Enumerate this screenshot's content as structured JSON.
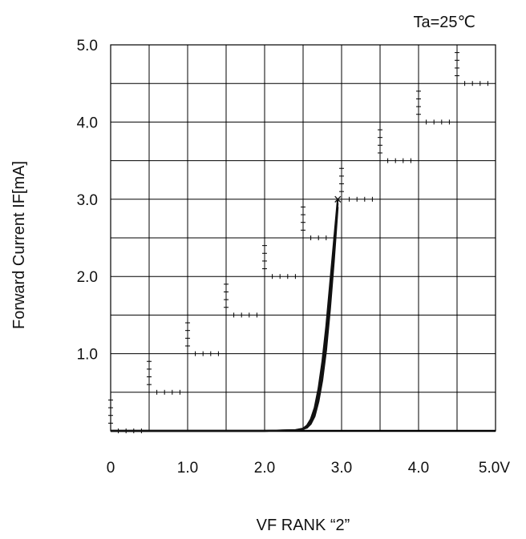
{
  "chart_data": {
    "type": "line",
    "annotation": "Ta=25℃",
    "xlabel": "VF RANK “2”",
    "ylabel": "Forward Current IF[mA]",
    "xlim": [
      0,
      5
    ],
    "ylim": [
      0,
      5
    ],
    "grid": true,
    "x_tick_labels": [
      {
        "value": 0,
        "label": "0"
      },
      {
        "value": 1,
        "label": "1.0"
      },
      {
        "value": 2,
        "label": "2.0"
      },
      {
        "value": 3,
        "label": "3.0"
      },
      {
        "value": 4,
        "label": "4.0"
      },
      {
        "value": 5,
        "label": "5.0V"
      }
    ],
    "y_tick_labels": [
      {
        "value": 1,
        "label": "1.0"
      },
      {
        "value": 2,
        "label": "2.0"
      },
      {
        "value": 3,
        "label": "3.0"
      },
      {
        "value": 4,
        "label": "4.0"
      },
      {
        "value": 5,
        "label": "5.0"
      }
    ],
    "series": [
      {
        "x": [
          0,
          2.0,
          2.4,
          2.5,
          2.55,
          2.6,
          2.65,
          2.7,
          2.75,
          2.8,
          2.85,
          2.9,
          2.95
        ],
        "y": [
          0,
          0,
          0.01,
          0.03,
          0.07,
          0.15,
          0.3,
          0.55,
          0.9,
          1.35,
          1.9,
          2.45,
          3.0
        ]
      },
      {
        "x": [
          0,
          2.0,
          2.4,
          2.5,
          2.55,
          2.6,
          2.65,
          2.7,
          2.75,
          2.8,
          2.85,
          2.9,
          2.95
        ],
        "y": [
          0,
          0,
          0.008,
          0.02,
          0.05,
          0.12,
          0.25,
          0.47,
          0.8,
          1.22,
          1.75,
          2.35,
          2.95
        ]
      },
      {
        "x": [
          0,
          2.0,
          2.45,
          2.55,
          2.6,
          2.65,
          2.7,
          2.75,
          2.8,
          2.85,
          2.9,
          2.95
        ],
        "y": [
          0,
          0,
          0.01,
          0.04,
          0.09,
          0.19,
          0.38,
          0.66,
          1.05,
          1.58,
          2.2,
          2.9
        ]
      }
    ],
    "end_marker": {
      "x": 2.95,
      "y": 3.0,
      "symbol": "×"
    }
  }
}
